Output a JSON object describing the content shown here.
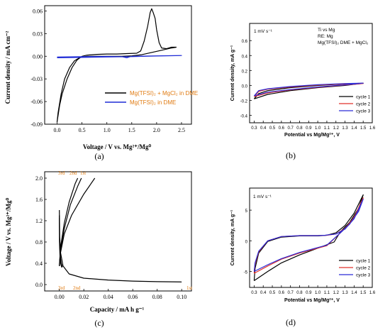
{
  "chart_data": [
    {
      "panel": "(a)",
      "type": "line",
      "xlabel": "Voltage / V vs. Mg²⁺/Mg⁰",
      "ylabel": "Current density / mA cm⁻²",
      "xlim": [
        -0.25,
        2.7
      ],
      "ylim": [
        -0.09,
        0.067
      ],
      "xticks": [
        0.0,
        0.5,
        1.0,
        1.5,
        2.0,
        2.5
      ],
      "xtick_labels": [
        "0.0",
        "0.5",
        "1.0",
        "1.5",
        "2.0",
        "2.5"
      ],
      "yticks": [
        -0.09,
        -0.06,
        -0.03,
        0.0,
        0.03,
        0.06
      ],
      "ytick_labels": [
        "-0.09",
        "-0.06",
        "-0.03",
        "0.00",
        "0.03",
        "0.06"
      ],
      "grid": false,
      "legend_position": "lower-right",
      "series": [
        {
          "name": "Mg(TFSI)₂ + MgCl₂ in DME",
          "color": "#000000",
          "points": [
            [
              2.4,
              0.012
            ],
            [
              2.3,
              0.012
            ],
            [
              2.2,
              0.01
            ],
            [
              2.1,
              0.011
            ],
            [
              2.05,
              0.018
            ],
            [
              2.0,
              0.035
            ],
            [
              1.97,
              0.05
            ],
            [
              1.93,
              0.058
            ],
            [
              1.9,
              0.063
            ],
            [
              1.87,
              0.058
            ],
            [
              1.82,
              0.04
            ],
            [
              1.75,
              0.02
            ],
            [
              1.68,
              0.007
            ],
            [
              1.6,
              0.004
            ],
            [
              1.4,
              0.0035
            ],
            [
              1.2,
              0.003
            ],
            [
              1.0,
              0.003
            ],
            [
              0.8,
              0.0025
            ],
            [
              0.6,
              0.0015
            ],
            [
              0.5,
              0.0
            ],
            [
              0.4,
              -0.005
            ],
            [
              0.3,
              -0.015
            ],
            [
              0.2,
              -0.03
            ],
            [
              0.1,
              -0.05
            ],
            [
              0.05,
              -0.065
            ],
            [
              0.0,
              -0.087
            ],
            [
              0.02,
              -0.075
            ],
            [
              0.08,
              -0.05
            ],
            [
              0.15,
              -0.03
            ],
            [
              0.25,
              -0.015
            ],
            [
              0.35,
              -0.006
            ],
            [
              0.45,
              -0.002
            ],
            [
              0.6,
              0.0
            ],
            [
              0.8,
              0.0
            ],
            [
              1.0,
              0.0
            ],
            [
              1.3,
              0.0
            ],
            [
              1.5,
              0.0005
            ],
            [
              1.7,
              0.002
            ],
            [
              1.9,
              0.005
            ],
            [
              2.1,
              0.008
            ],
            [
              2.3,
              0.011
            ],
            [
              2.4,
              0.012
            ]
          ]
        },
        {
          "name": "Mg(TFSI)₂ in DME",
          "color": "#1f2bd6",
          "points": [
            [
              0.0,
              -0.001
            ],
            [
              0.5,
              -0.0005
            ],
            [
              1.0,
              -0.0003
            ],
            [
              1.3,
              -0.0005
            ],
            [
              1.4,
              -0.002
            ],
            [
              1.45,
              -0.001
            ],
            [
              1.5,
              0.0
            ],
            [
              2.0,
              0.0005
            ],
            [
              2.5,
              0.001
            ],
            [
              2.0,
              0.0003
            ],
            [
              1.5,
              -0.0005
            ],
            [
              1.0,
              -0.001
            ],
            [
              0.5,
              -0.0015
            ],
            [
              0.0,
              -0.002
            ]
          ]
        }
      ]
    },
    {
      "panel": "(b)",
      "type": "line",
      "xlabel": "Potential vs Mg/Mg²⁺, V",
      "ylabel": "Current density, mA g⁻¹",
      "xlim": [
        0.25,
        1.6
      ],
      "ylim": [
        -0.5,
        0.83
      ],
      "xticks": [
        0.3,
        0.4,
        0.5,
        0.6,
        0.7,
        0.8,
        0.9,
        1.0,
        1.1,
        1.2,
        1.3,
        1.4,
        1.5,
        1.6
      ],
      "xtick_labels": [
        "0.3",
        "0.4",
        "0.5",
        "0.6",
        "0.7",
        "0.8",
        "0.9",
        "1.0",
        "1.1",
        "1.2",
        "1.3",
        "1.4",
        "1.5",
        "1.6"
      ],
      "yticks": [
        -0.4,
        -0.2,
        0.0,
        0.2,
        0.4,
        0.6
      ],
      "ytick_labels": [
        "-0.4",
        "-0.2",
        "0.0",
        "0.2",
        "0.4",
        "0.6"
      ],
      "grid": false,
      "legend_position": "lower-right",
      "annotations": [
        "1 mV s⁻¹",
        "Ti vs Mg",
        "RE: Mg",
        "Mg(TFSI)₂ DME + MgCl₂"
      ],
      "series": [
        {
          "name": "cycle 1",
          "color": "#000000",
          "points": [
            [
              0.3,
              -0.18
            ],
            [
              0.35,
              -0.11
            ],
            [
              0.45,
              -0.07
            ],
            [
              0.7,
              -0.03
            ],
            [
              1.0,
              0.0
            ],
            [
              1.3,
              0.02
            ],
            [
              1.5,
              0.03
            ],
            [
              1.3,
              0.0
            ],
            [
              1.0,
              -0.03
            ],
            [
              0.7,
              -0.07
            ],
            [
              0.45,
              -0.12
            ],
            [
              0.3,
              -0.18
            ]
          ]
        },
        {
          "name": "cycle 2",
          "color": "#e0302a",
          "points": [
            [
              0.3,
              -0.15
            ],
            [
              0.35,
              -0.08
            ],
            [
              0.45,
              -0.05
            ],
            [
              0.7,
              -0.02
            ],
            [
              1.0,
              0.005
            ],
            [
              1.3,
              0.02
            ],
            [
              1.5,
              0.025
            ],
            [
              1.3,
              0.005
            ],
            [
              1.0,
              -0.025
            ],
            [
              0.7,
              -0.06
            ],
            [
              0.45,
              -0.1
            ],
            [
              0.3,
              -0.15
            ]
          ]
        },
        {
          "name": "cycle 3",
          "color": "#2b2bd8",
          "points": [
            [
              0.3,
              -0.14
            ],
            [
              0.35,
              -0.07
            ],
            [
              0.45,
              -0.045
            ],
            [
              0.7,
              -0.015
            ],
            [
              1.0,
              0.01
            ],
            [
              1.3,
              0.025
            ],
            [
              1.5,
              0.03
            ],
            [
              1.3,
              0.008
            ],
            [
              1.0,
              -0.02
            ],
            [
              0.7,
              -0.055
            ],
            [
              0.45,
              -0.09
            ],
            [
              0.3,
              -0.14
            ]
          ]
        }
      ]
    },
    {
      "panel": "(c)",
      "type": "line",
      "xlabel": "Capacity / mA h g⁻¹",
      "ylabel": "Voltage / V vs. Mg²⁺/Mg⁰",
      "xlim": [
        -0.012,
        0.108
      ],
      "ylim": [
        -0.12,
        2.12
      ],
      "xticks": [
        0.0,
        0.02,
        0.04,
        0.06,
        0.08,
        0.1
      ],
      "xtick_labels": [
        "0.00",
        "0.02",
        "0.04",
        "0.06",
        "0.08",
        "0.10"
      ],
      "yticks": [
        0.0,
        0.4,
        0.8,
        1.2,
        1.6,
        2.0
      ],
      "ytick_labels": [
        "0.0",
        "0.4",
        "0.8",
        "1.2",
        "1.6",
        "2.0"
      ],
      "grid": false,
      "annotations": [
        "3rd",
        "2nd",
        "1st",
        "3rd",
        "2nd",
        "1st"
      ],
      "series": [
        {
          "name": "1st",
          "color": "#000000",
          "points": [
            [
              0.0,
              1.4
            ],
            [
              0.0003,
              0.9
            ],
            [
              0.001,
              0.6
            ],
            [
              0.003,
              0.35
            ],
            [
              0.008,
              0.2
            ],
            [
              0.02,
              0.12
            ],
            [
              0.04,
              0.085
            ],
            [
              0.06,
              0.065
            ],
            [
              0.08,
              0.055
            ],
            [
              0.1,
              0.05
            ]
          ],
          "charge": [
            [
              0.0,
              0.35
            ],
            [
              0.001,
              0.6
            ],
            [
              0.004,
              0.95
            ],
            [
              0.01,
              1.3
            ],
            [
              0.02,
              1.7
            ],
            [
              0.029,
              2.0
            ]
          ]
        },
        {
          "name": "2nd",
          "color": "#000000",
          "points": [
            [
              0.0,
              1.3
            ],
            [
              0.0002,
              0.8
            ],
            [
              0.0007,
              0.55
            ],
            [
              0.0015,
              0.4
            ],
            [
              0.0025,
              0.33
            ]
          ],
          "charge": [
            [
              0.0,
              0.35
            ],
            [
              0.001,
              0.65
            ],
            [
              0.004,
              1.05
            ],
            [
              0.009,
              1.5
            ],
            [
              0.015,
              1.85
            ],
            [
              0.018,
              2.0
            ]
          ]
        },
        {
          "name": "3rd",
          "color": "#000000",
          "points": [
            [
              0.0,
              1.25
            ],
            [
              0.0002,
              0.75
            ],
            [
              0.0006,
              0.5
            ],
            [
              0.0012,
              0.38
            ],
            [
              0.002,
              0.32
            ]
          ],
          "charge": [
            [
              0.0,
              0.35
            ],
            [
              0.001,
              0.7
            ],
            [
              0.004,
              1.15
            ],
            [
              0.008,
              1.55
            ],
            [
              0.013,
              1.9
            ],
            [
              0.015,
              2.0
            ]
          ]
        }
      ]
    },
    {
      "panel": "(d)",
      "type": "line",
      "xlabel": "Potential vs Mg/Mg²⁺, V",
      "ylabel": "Current density, mA g⁻¹",
      "xlim": [
        0.25,
        1.6
      ],
      "ylim": [
        -7.6,
        8.6
      ],
      "xticks": [
        0.3,
        0.4,
        0.5,
        0.6,
        0.7,
        0.8,
        0.9,
        1.0,
        1.1,
        1.2,
        1.3,
        1.4,
        1.5,
        1.6
      ],
      "xtick_labels": [
        "0.3",
        "0.4",
        "0.5",
        "0.6",
        "0.7",
        "0.8",
        "0.9",
        "1.0",
        "1.1",
        "1.2",
        "1.3",
        "1.4",
        "1.5",
        "1.6"
      ],
      "yticks": [
        -5,
        0,
        5
      ],
      "ytick_labels": [
        "-5",
        "0",
        "5"
      ],
      "grid": false,
      "legend_position": "lower-right",
      "annotations": [
        "1 mV s⁻¹"
      ],
      "series": [
        {
          "name": "cycle 1",
          "color": "#000000",
          "points": [
            [
              0.3,
              -6.5
            ],
            [
              0.31,
              -4.5
            ],
            [
              0.35,
              -2.0
            ],
            [
              0.45,
              -0.1
            ],
            [
              0.6,
              0.6
            ],
            [
              0.8,
              0.8
            ],
            [
              1.0,
              0.8
            ],
            [
              1.1,
              0.9
            ],
            [
              1.2,
              1.3
            ],
            [
              1.3,
              2.5
            ],
            [
              1.4,
              4.5
            ],
            [
              1.5,
              7.5
            ],
            [
              1.45,
              5.3
            ],
            [
              1.35,
              3.0
            ],
            [
              1.25,
              1.5
            ],
            [
              1.18,
              -0.2
            ],
            [
              1.0,
              -1.2
            ],
            [
              0.8,
              -2.3
            ],
            [
              0.6,
              -3.6
            ],
            [
              0.45,
              -5.0
            ],
            [
              0.3,
              -6.5
            ]
          ]
        },
        {
          "name": "cycle 2",
          "color": "#e0302a",
          "points": [
            [
              0.3,
              -5.3
            ],
            [
              0.31,
              -3.8
            ],
            [
              0.35,
              -1.8
            ],
            [
              0.45,
              0.0
            ],
            [
              0.6,
              0.7
            ],
            [
              0.8,
              0.85
            ],
            [
              1.0,
              0.85
            ],
            [
              1.09,
              0.9
            ],
            [
              1.12,
              0.95
            ],
            [
              1.2,
              1.1
            ],
            [
              1.3,
              2.0
            ],
            [
              1.4,
              3.8
            ],
            [
              1.5,
              7.0
            ],
            [
              1.45,
              5.0
            ],
            [
              1.35,
              2.8
            ],
            [
              1.25,
              1.3
            ],
            [
              1.1,
              -0.8
            ],
            [
              1.0,
              -1.2
            ],
            [
              0.8,
              -2.0
            ],
            [
              0.6,
              -3.0
            ],
            [
              0.45,
              -4.1
            ],
            [
              0.3,
              -5.3
            ]
          ]
        },
        {
          "name": "cycle 3",
          "color": "#2b2bd8",
          "points": [
            [
              0.3,
              -5.0
            ],
            [
              0.31,
              -3.6
            ],
            [
              0.35,
              -1.7
            ],
            [
              0.45,
              0.0
            ],
            [
              0.6,
              0.7
            ],
            [
              0.8,
              0.85
            ],
            [
              1.0,
              0.85
            ],
            [
              1.08,
              0.9
            ],
            [
              1.1,
              0.95
            ],
            [
              1.2,
              1.1
            ],
            [
              1.3,
              1.9
            ],
            [
              1.4,
              3.6
            ],
            [
              1.5,
              6.8
            ],
            [
              1.45,
              4.8
            ],
            [
              1.35,
              2.7
            ],
            [
              1.25,
              1.3
            ],
            [
              1.1,
              -0.7
            ],
            [
              1.0,
              -1.1
            ],
            [
              0.8,
              -1.9
            ],
            [
              0.6,
              -2.9
            ],
            [
              0.45,
              -3.9
            ],
            [
              0.3,
              -5.0
            ]
          ]
        }
      ]
    }
  ],
  "captions": [
    "(a)",
    "(b)",
    "(c)",
    "(d)"
  ]
}
